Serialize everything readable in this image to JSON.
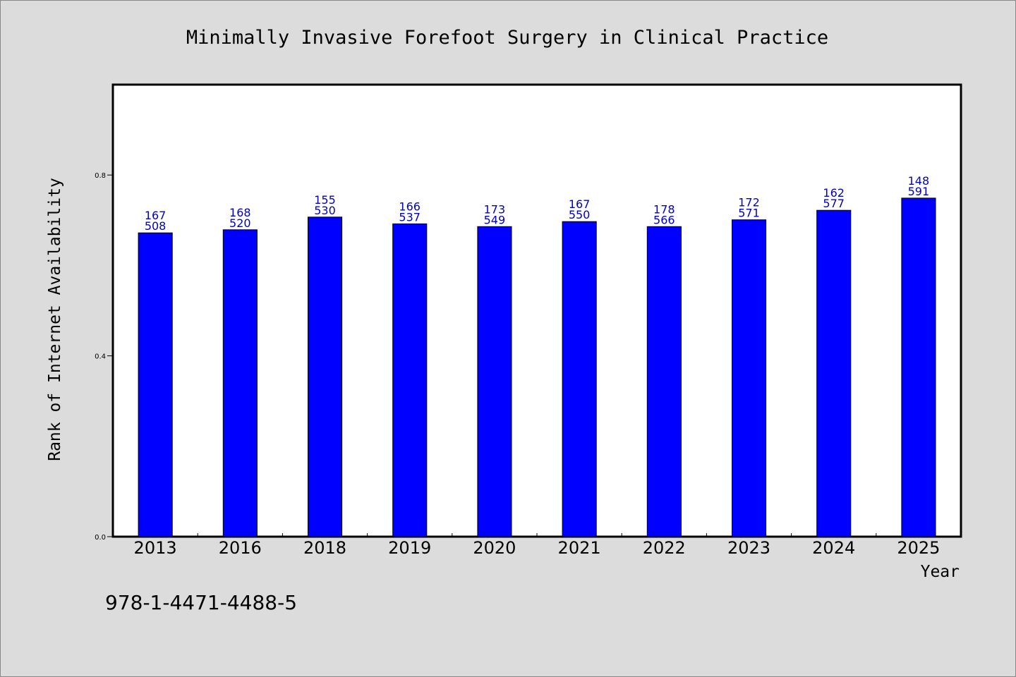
{
  "chart_data": {
    "type": "bar",
    "title": "Minimally Invasive Forefoot Surgery in Clinical Practice",
    "xlabel": "Year",
    "ylabel": "Rank of Internet Availability",
    "categories": [
      "2013",
      "2016",
      "2018",
      "2019",
      "2020",
      "2021",
      "2022",
      "2023",
      "2024",
      "2025"
    ],
    "values": [
      0.672,
      0.679,
      0.707,
      0.692,
      0.686,
      0.697,
      0.686,
      0.701,
      0.722,
      0.749
    ],
    "data_labels": [
      [
        "167",
        "508"
      ],
      [
        "168",
        "520"
      ],
      [
        "155",
        "530"
      ],
      [
        "166",
        "537"
      ],
      [
        "173",
        "549"
      ],
      [
        "167",
        "550"
      ],
      [
        "178",
        "566"
      ],
      [
        "172",
        "571"
      ],
      [
        "162",
        "577"
      ],
      [
        "148",
        "591"
      ]
    ],
    "yticks": [
      {
        "value": 0.0,
        "label": "0.0"
      },
      {
        "value": 0.4,
        "label": "0.4"
      },
      {
        "value": 0.8,
        "label": "0.8"
      }
    ],
    "ylim": [
      0,
      1.0
    ],
    "grid": false,
    "colors": {
      "bar": "#0000ff",
      "bar_edge": "#000000",
      "data_label": "#0000cc",
      "background": "#dcdcdc",
      "plot_background": "#ffffff"
    }
  },
  "footer": {
    "isbn": "978-1-4471-4488-5"
  }
}
